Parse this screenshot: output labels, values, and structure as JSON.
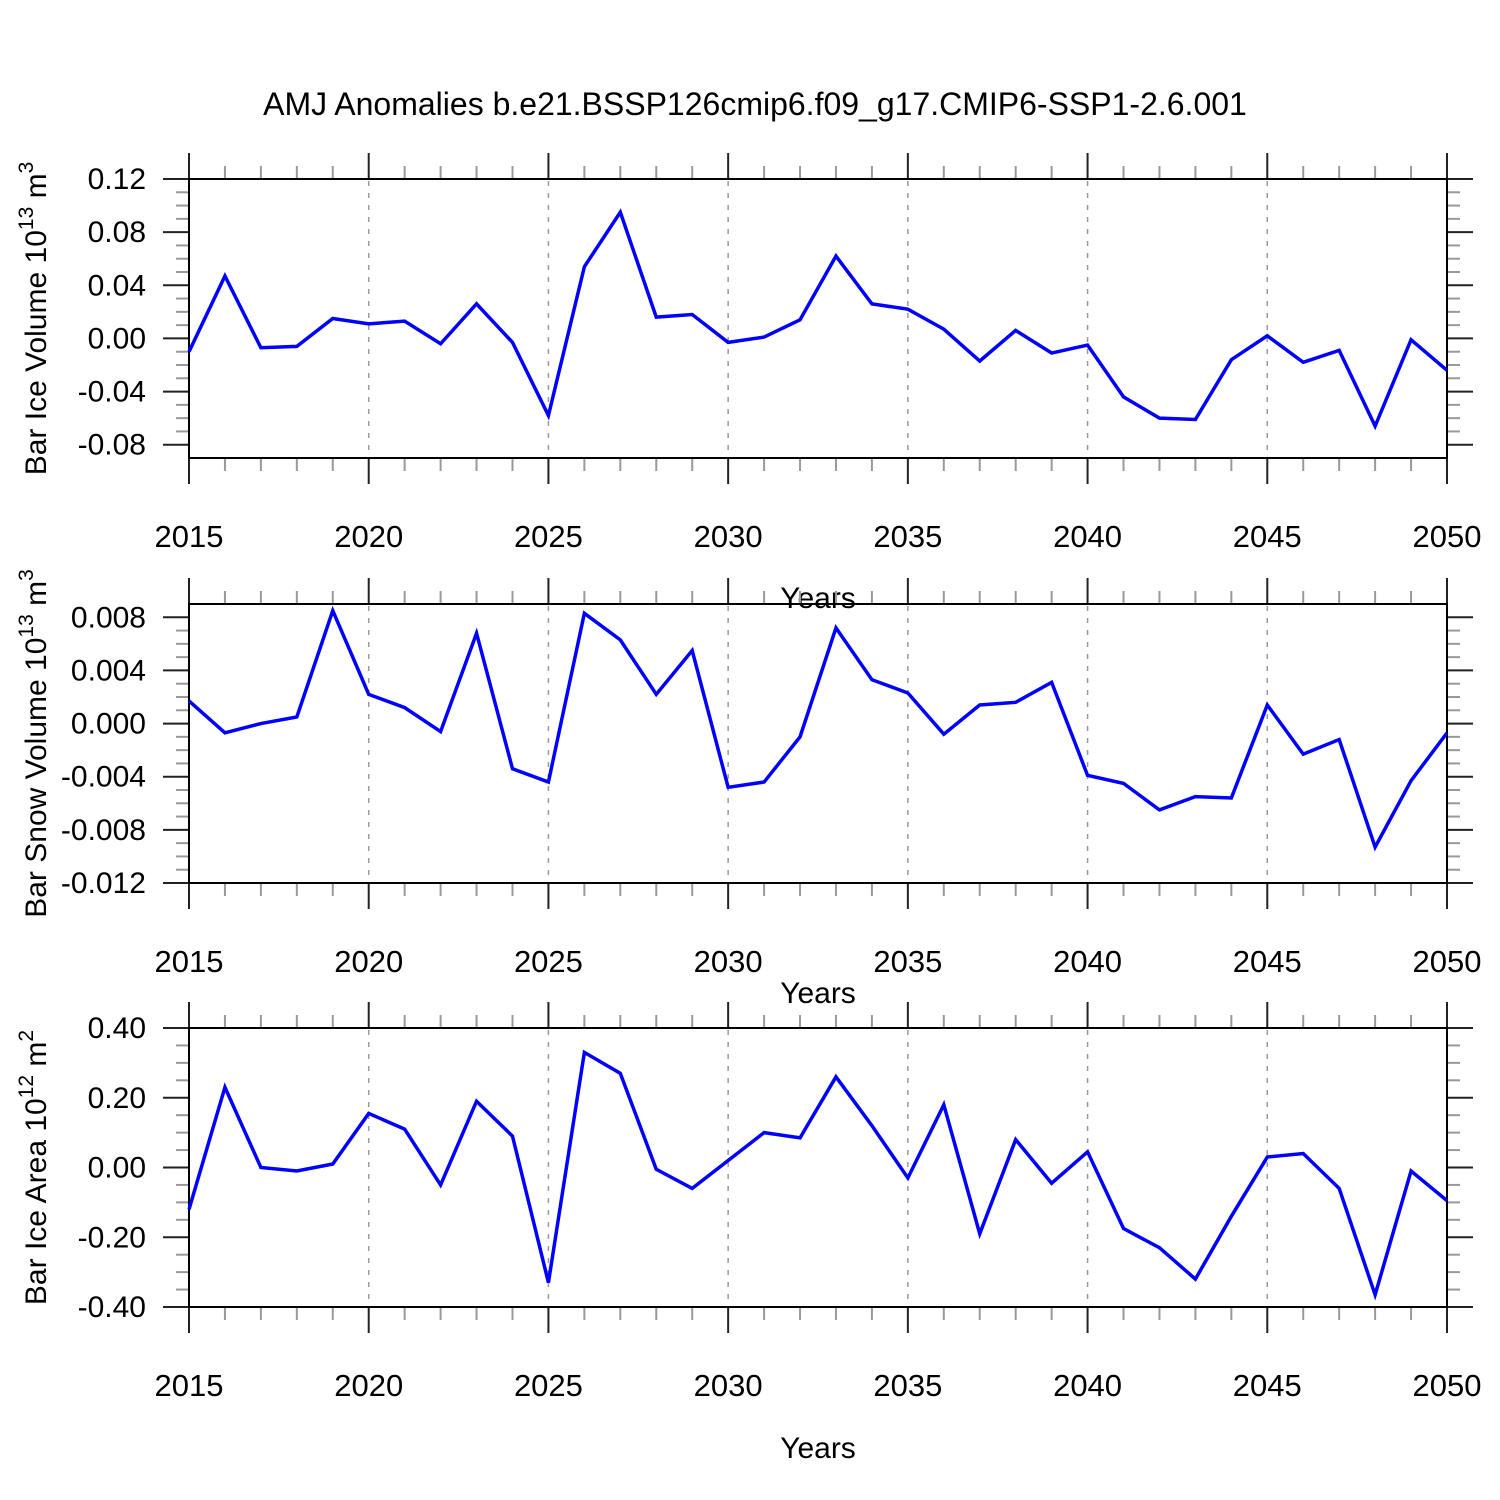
{
  "title": "AMJ Anomalies b.e21.BSSP126cmip6.f09_g17.CMIP6-SSP1-2.6.001",
  "colors": {
    "line": "#0000ff",
    "frame": "#000000",
    "major_tick": "#222222",
    "minor_tick": "#999999",
    "grid": "#9a9a9a",
    "text": "#000000",
    "background": "#ffffff"
  },
  "x_axis": {
    "label": "Years",
    "min": 2015,
    "max": 2050,
    "major_ticks": [
      2015,
      2020,
      2025,
      2030,
      2035,
      2040,
      2045,
      2050
    ],
    "minor_step": 1,
    "grid_years": [
      2020,
      2025,
      2030,
      2035,
      2040,
      2045
    ]
  },
  "chart_data": [
    {
      "id": "panel-ice-volume",
      "type": "line",
      "ylabel": "Bar Ice Volume 10^13 m^3",
      "ylabel_parts": {
        "base": "Bar Ice Volume 10",
        "exp": "13",
        "unit": " m",
        "unit_exp": "3"
      },
      "xlabel": "Years",
      "ylim": [
        -0.09,
        0.12
      ],
      "y_minor_step": 0.01,
      "yticks": [
        {
          "v": 0.12,
          "label": "0.12"
        },
        {
          "v": 0.08,
          "label": "0.08"
        },
        {
          "v": 0.04,
          "label": "0.04"
        },
        {
          "v": 0.0,
          "label": "0.00"
        },
        {
          "v": -0.04,
          "label": "-0.04"
        },
        {
          "v": -0.08,
          "label": "-0.08"
        }
      ],
      "x": [
        2015,
        2016,
        2017,
        2018,
        2019,
        2020,
        2021,
        2022,
        2023,
        2024,
        2025,
        2026,
        2027,
        2028,
        2029,
        2030,
        2031,
        2032,
        2033,
        2034,
        2035,
        2036,
        2037,
        2038,
        2039,
        2040,
        2041,
        2042,
        2043,
        2044,
        2045,
        2046,
        2047,
        2048,
        2049,
        2050
      ],
      "values": [
        -0.01,
        0.047,
        -0.007,
        -0.006,
        0.015,
        0.011,
        0.013,
        -0.004,
        0.026,
        -0.003,
        -0.058,
        0.054,
        0.095,
        0.016,
        0.018,
        -0.003,
        0.001,
        0.014,
        0.062,
        0.026,
        0.022,
        0.007,
        -0.017,
        0.006,
        -0.011,
        -0.005,
        -0.044,
        -0.06,
        -0.061,
        -0.016,
        0.002,
        -0.018,
        -0.009,
        -0.066,
        -0.001,
        -0.024
      ]
    },
    {
      "id": "panel-snow-volume",
      "type": "line",
      "ylabel": "Bar Snow Volume 10^13 m^3",
      "ylabel_parts": {
        "base": "Bar Snow Volume 10",
        "exp": "13",
        "unit": " m",
        "unit_exp": "3"
      },
      "xlabel": "Years",
      "ylim": [
        -0.012,
        0.009
      ],
      "y_minor_step": 0.001,
      "yticks": [
        {
          "v": 0.008,
          "label": "0.008"
        },
        {
          "v": 0.004,
          "label": "0.004"
        },
        {
          "v": 0.0,
          "label": "0.000"
        },
        {
          "v": -0.004,
          "label": "-0.004"
        },
        {
          "v": -0.008,
          "label": "-0.008"
        },
        {
          "v": -0.012,
          "label": "-0.012"
        }
      ],
      "x": [
        2015,
        2016,
        2017,
        2018,
        2019,
        2020,
        2021,
        2022,
        2023,
        2024,
        2025,
        2026,
        2027,
        2028,
        2029,
        2030,
        2031,
        2032,
        2033,
        2034,
        2035,
        2036,
        2037,
        2038,
        2039,
        2040,
        2041,
        2042,
        2043,
        2044,
        2045,
        2046,
        2047,
        2048,
        2049,
        2050
      ],
      "values": [
        0.0017,
        -0.0007,
        0.0,
        0.0005,
        0.0085,
        0.0022,
        0.0012,
        -0.0006,
        0.0068,
        -0.0034,
        -0.0044,
        0.0083,
        0.0063,
        0.0022,
        0.0055,
        -0.0048,
        -0.0044,
        -0.001,
        0.0072,
        0.0033,
        0.0023,
        -0.0008,
        0.0014,
        0.0016,
        0.0031,
        -0.0039,
        -0.0045,
        -0.0065,
        -0.0055,
        -0.0056,
        0.0014,
        -0.0023,
        -0.0012,
        -0.0093,
        -0.0043,
        -0.0007
      ]
    },
    {
      "id": "panel-ice-area",
      "type": "line",
      "ylabel": "Bar Ice Area 10^12 m^2",
      "ylabel_parts": {
        "base": "Bar Ice Area 10",
        "exp": "12",
        "unit": " m",
        "unit_exp": "2"
      },
      "xlabel": "Years",
      "ylim": [
        -0.4,
        0.4
      ],
      "y_minor_step": 0.05,
      "yticks": [
        {
          "v": 0.4,
          "label": "0.40"
        },
        {
          "v": 0.2,
          "label": "0.20"
        },
        {
          "v": 0.0,
          "label": "0.00"
        },
        {
          "v": -0.2,
          "label": "-0.20"
        },
        {
          "v": -0.4,
          "label": "-0.40"
        }
      ],
      "x": [
        2015,
        2016,
        2017,
        2018,
        2019,
        2020,
        2021,
        2022,
        2023,
        2024,
        2025,
        2026,
        2027,
        2028,
        2029,
        2030,
        2031,
        2032,
        2033,
        2034,
        2035,
        2036,
        2037,
        2038,
        2039,
        2040,
        2041,
        2042,
        2043,
        2044,
        2045,
        2046,
        2047,
        2048,
        2049,
        2050
      ],
      "values": [
        -0.12,
        0.23,
        0.0,
        -0.01,
        0.01,
        0.155,
        0.11,
        -0.05,
        0.19,
        0.09,
        -0.33,
        0.33,
        0.27,
        -0.005,
        -0.06,
        0.02,
        0.1,
        0.085,
        0.26,
        0.12,
        -0.03,
        0.18,
        -0.19,
        0.08,
        -0.045,
        0.045,
        -0.175,
        -0.23,
        -0.32,
        -0.14,
        0.03,
        0.04,
        -0.06,
        -0.365,
        -0.01,
        -0.095
      ]
    }
  ]
}
